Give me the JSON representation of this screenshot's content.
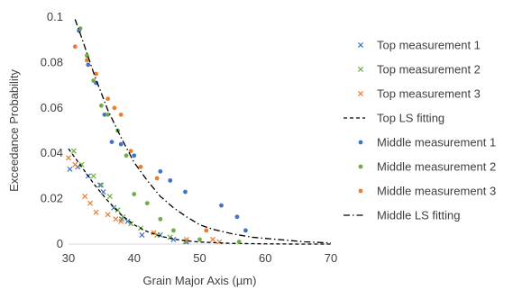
{
  "chart_data": {
    "type": "scatter",
    "xlabel": "Grain Major Axis (µm)",
    "ylabel": "Exceedance Probability",
    "xlim": [
      30,
      70
    ],
    "ylim": [
      0,
      0.1
    ],
    "xticks": [
      30,
      40,
      50,
      60,
      70
    ],
    "yticks": [
      0,
      0.02,
      0.04,
      0.06,
      0.08,
      0.1
    ],
    "ytick_labels": [
      "0",
      "0.02",
      "0.04",
      "0.06",
      "0.08",
      "0.1"
    ],
    "grid": false,
    "legend_position": "right",
    "series": [
      {
        "name": "Top measurement 1",
        "kind": "scatter",
        "marker": "x",
        "color": "#4472C4",
        "x": [
          30.2,
          31.4,
          33.0,
          34.8,
          35.3,
          36.9,
          38.1,
          39.0,
          41.2,
          44.0,
          46.0,
          48.0
        ],
        "y": [
          0.033,
          0.034,
          0.03,
          0.026,
          0.023,
          0.016,
          0.011,
          0.01,
          0.004,
          0.004,
          0.002,
          0.001
        ]
      },
      {
        "name": "Top measurement 2",
        "kind": "scatter",
        "marker": "x",
        "color": "#70AD47",
        "x": [
          30.8,
          32.0,
          33.8,
          35.0,
          36.3,
          37.5,
          38.3,
          39.5,
          41.0,
          43.5,
          45.5,
          47.8
        ],
        "y": [
          0.041,
          0.035,
          0.03,
          0.026,
          0.021,
          0.015,
          0.012,
          0.009,
          0.007,
          0.004,
          0.003,
          0.001
        ]
      },
      {
        "name": "Top measurement 3",
        "kind": "scatter",
        "marker": "x",
        "color": "#ED7D31",
        "x": [
          30.0,
          31.0,
          32.5,
          33.3,
          34.2,
          36.0,
          37.2,
          38.0,
          43.0,
          48.0,
          52.0,
          53.0
        ],
        "y": [
          0.038,
          0.035,
          0.021,
          0.018,
          0.014,
          0.013,
          0.011,
          0.01,
          0.005,
          0.002,
          0.002,
          0.001
        ]
      },
      {
        "name": "Top LS fitting",
        "kind": "line",
        "dash": "dashed",
        "color": "#000000",
        "x": [
          30,
          32,
          34,
          36,
          38,
          40,
          42,
          44,
          46,
          48,
          50,
          55,
          60,
          65,
          70
        ],
        "y": [
          0.042,
          0.034,
          0.026,
          0.019,
          0.013,
          0.0085,
          0.0055,
          0.0035,
          0.0022,
          0.0014,
          0.0009,
          0.0003,
          0.0001,
          0.0,
          0.0
        ]
      },
      {
        "name": "Middle measurement 1",
        "kind": "scatter",
        "marker": "dot",
        "color": "#4472C4",
        "x": [
          31.6,
          33.0,
          34.2,
          35.5,
          36.6,
          38.0,
          40.0,
          44.0,
          45.5,
          47.8,
          53.3,
          55.7,
          57.0
        ],
        "y": [
          0.094,
          0.079,
          0.071,
          0.057,
          0.045,
          0.044,
          0.039,
          0.032,
          0.028,
          0.023,
          0.017,
          0.012,
          0.006
        ]
      },
      {
        "name": "Middle measurement 2",
        "kind": "scatter",
        "marker": "dot",
        "color": "#70AD47",
        "x": [
          31.8,
          32.8,
          33.8,
          35.0,
          36.0,
          37.5,
          38.8,
          40.0,
          42.0,
          44.0,
          46.0,
          50.0,
          56.0
        ],
        "y": [
          0.095,
          0.083,
          0.072,
          0.061,
          0.057,
          0.05,
          0.039,
          0.022,
          0.018,
          0.011,
          0.006,
          0.002,
          0.001
        ]
      },
      {
        "name": "Middle measurement 3",
        "kind": "scatter",
        "marker": "dot",
        "color": "#ED7D31",
        "x": [
          31.0,
          32.8,
          34.2,
          36.0,
          37.0,
          38.0,
          39.5,
          41.0,
          43.5,
          51.0
        ],
        "y": [
          0.087,
          0.081,
          0.075,
          0.064,
          0.06,
          0.057,
          0.041,
          0.034,
          0.029,
          0.006
        ]
      },
      {
        "name": "Middle LS fitting",
        "kind": "line",
        "dash": "dashdot",
        "color": "#000000",
        "x": [
          31,
          32,
          34,
          36,
          38,
          40,
          42,
          44,
          46,
          48,
          50,
          52,
          55,
          58,
          62,
          66,
          70
        ],
        "y": [
          0.099,
          0.091,
          0.074,
          0.059,
          0.047,
          0.036,
          0.028,
          0.021,
          0.016,
          0.012,
          0.0085,
          0.0065,
          0.0045,
          0.003,
          0.002,
          0.001,
          0.0005
        ]
      }
    ]
  }
}
